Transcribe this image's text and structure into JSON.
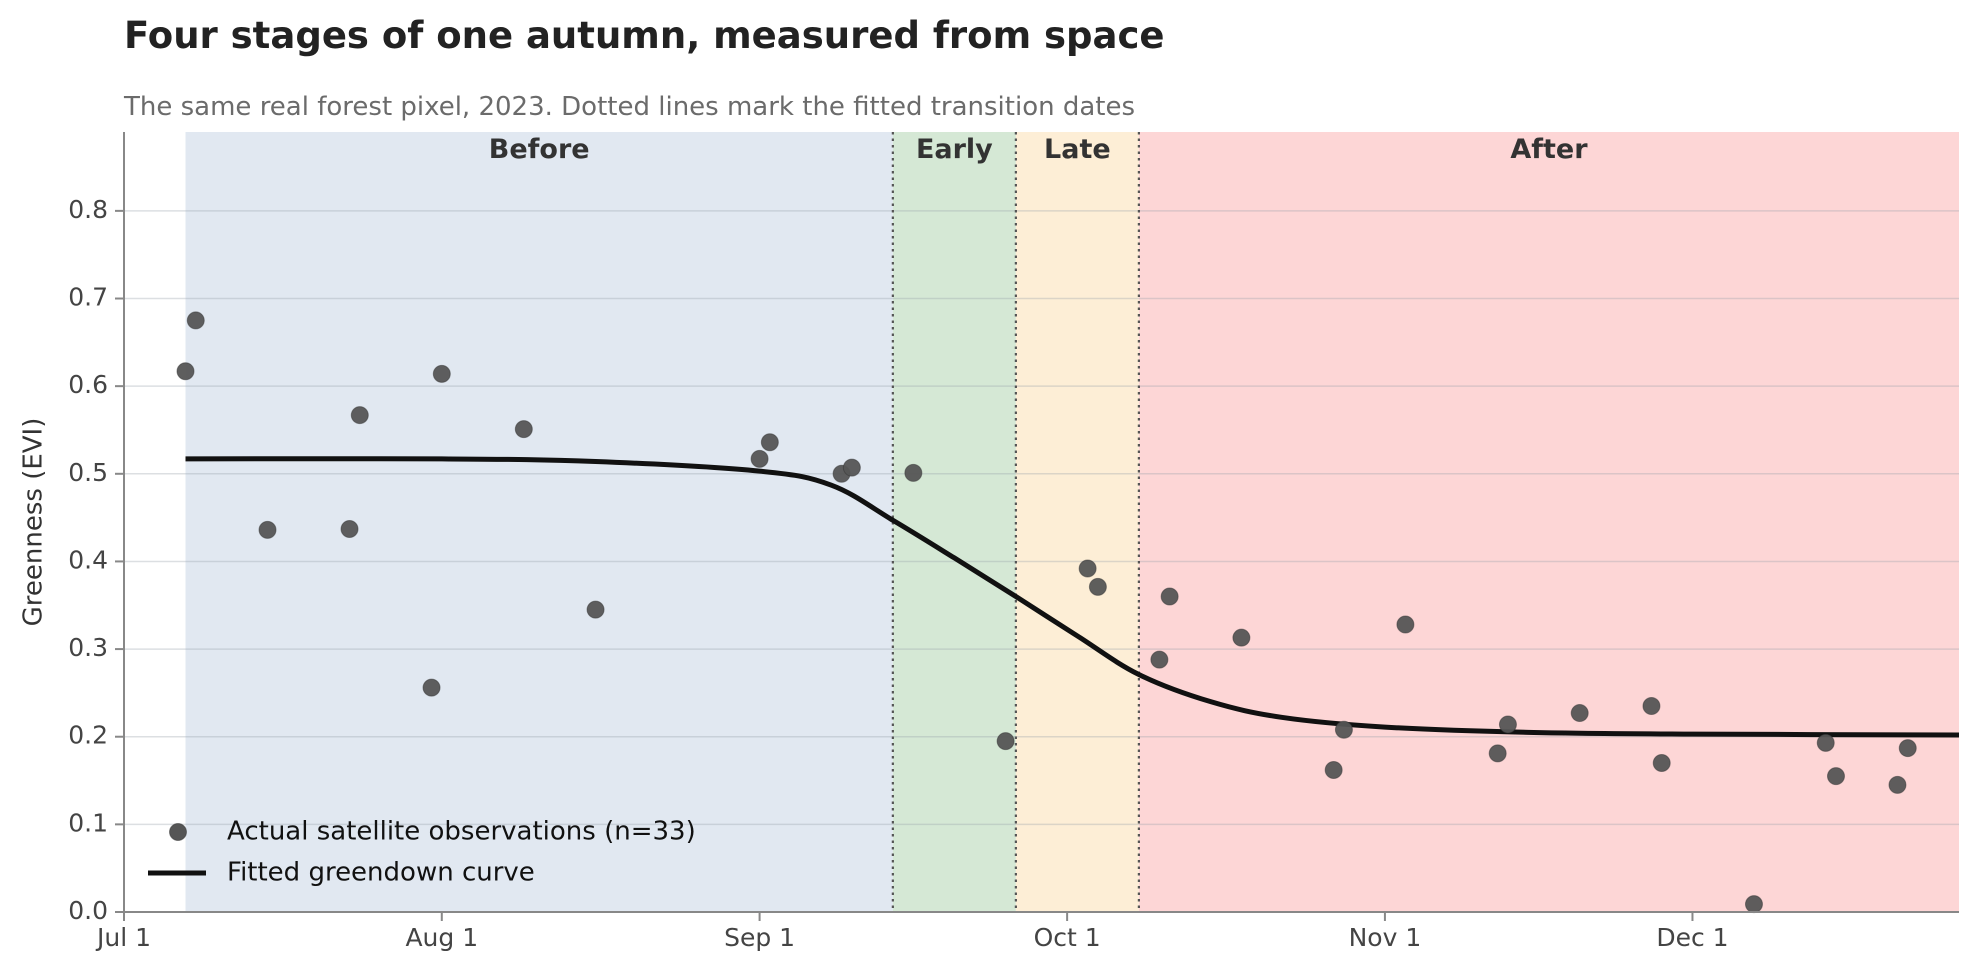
{
  "chart_data": {
    "type": "scatter",
    "title": "Four stages of one autumn, measured from space",
    "subtitle": "The same real forest pixel, 2023. Dotted lines mark the fitted transition dates",
    "ylabel": "Greenness (EVI)",
    "xlabel": "",
    "ylim": [
      0.0,
      0.89
    ],
    "xlim": [
      "2023-07-01",
      "2023-12-27"
    ],
    "y_ticks": [
      "0.0",
      "0.1",
      "0.2",
      "0.3",
      "0.4",
      "0.5",
      "0.6",
      "0.7",
      "0.8"
    ],
    "x_ticks": [
      {
        "date": "2023-07-01",
        "label": "Jul 1"
      },
      {
        "date": "2023-08-01",
        "label": "Aug 1"
      },
      {
        "date": "2023-09-01",
        "label": "Sep 1"
      },
      {
        "date": "2023-10-01",
        "label": "Oct 1"
      },
      {
        "date": "2023-11-01",
        "label": "Nov 1"
      },
      {
        "date": "2023-12-01",
        "label": "Dec 1"
      }
    ],
    "grid": "horizontal",
    "legend_position": "lower-left",
    "stages": [
      {
        "label": "Before",
        "start": "2023-07-07",
        "end": "2023-09-14",
        "color": "#e1e8f1"
      },
      {
        "label": "Early",
        "start": "2023-09-14",
        "end": "2023-09-26",
        "color": "#d5e8d5"
      },
      {
        "label": "Late",
        "start": "2023-09-26",
        "end": "2023-10-08",
        "color": "#fdeed6"
      },
      {
        "label": "After",
        "start": "2023-10-08",
        "end": "2023-12-27",
        "color": "#fdd6d6"
      }
    ],
    "transition_dates": [
      "2023-09-14",
      "2023-09-26",
      "2023-10-08"
    ],
    "series": [
      {
        "name": "Actual satellite observations (n=33)",
        "type": "scatter",
        "color": "#555555",
        "points": [
          [
            "2023-07-07",
            0.617
          ],
          [
            "2023-07-08",
            0.675
          ],
          [
            "2023-07-15",
            0.436
          ],
          [
            "2023-07-23",
            0.437
          ],
          [
            "2023-07-24",
            0.567
          ],
          [
            "2023-07-31",
            0.256
          ],
          [
            "2023-08-01",
            0.614
          ],
          [
            "2023-08-09",
            0.551
          ],
          [
            "2023-08-16",
            0.345
          ],
          [
            "2023-09-01",
            0.517
          ],
          [
            "2023-09-02",
            0.536
          ],
          [
            "2023-09-09",
            0.5
          ],
          [
            "2023-09-10",
            0.507
          ],
          [
            "2023-09-16",
            0.501
          ],
          [
            "2023-09-25",
            0.195
          ],
          [
            "2023-10-03",
            0.392
          ],
          [
            "2023-10-04",
            0.371
          ],
          [
            "2023-10-10",
            0.288
          ],
          [
            "2023-10-11",
            0.36
          ],
          [
            "2023-10-18",
            0.313
          ],
          [
            "2023-10-27",
            0.162
          ],
          [
            "2023-10-28",
            0.208
          ],
          [
            "2023-11-03",
            0.328
          ],
          [
            "2023-11-12",
            0.181
          ],
          [
            "2023-11-13",
            0.214
          ],
          [
            "2023-11-20",
            0.227
          ],
          [
            "2023-11-27",
            0.235
          ],
          [
            "2023-11-28",
            0.17
          ],
          [
            "2023-12-07",
            0.009
          ],
          [
            "2023-12-14",
            0.193
          ],
          [
            "2023-12-15",
            0.155
          ],
          [
            "2023-12-21",
            0.145
          ],
          [
            "2023-12-22",
            0.187
          ]
        ]
      },
      {
        "name": "Fitted greendown curve",
        "type": "line",
        "color": "#111111",
        "x": [
          "2023-07-07",
          "2023-08-01",
          "2023-08-16",
          "2023-09-01",
          "2023-09-08",
          "2023-09-14",
          "2023-09-20",
          "2023-09-26",
          "2023-10-02",
          "2023-10-08",
          "2023-10-15",
          "2023-10-22",
          "2023-11-01",
          "2023-11-15",
          "2023-12-01",
          "2023-12-27"
        ],
        "values": [
          0.517,
          0.517,
          0.514,
          0.503,
          0.487,
          0.447,
          0.404,
          0.36,
          0.315,
          0.271,
          0.24,
          0.222,
          0.211,
          0.205,
          0.203,
          0.202
        ]
      }
    ]
  }
}
